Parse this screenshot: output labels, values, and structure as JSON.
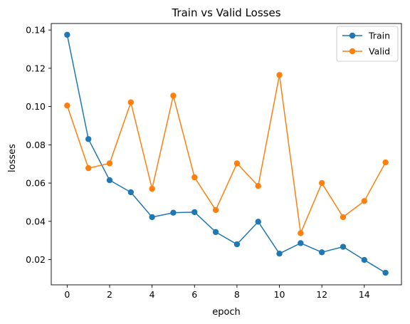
{
  "chart_data": {
    "type": "line",
    "title": "Train vs Valid Losses",
    "xlabel": "epoch",
    "ylabel": "losses",
    "x": [
      0,
      1,
      2,
      3,
      4,
      5,
      6,
      7,
      8,
      9,
      10,
      11,
      12,
      13,
      14,
      15
    ],
    "xlim": [
      -0.75,
      15.75
    ],
    "ylim": [
      0.0068,
      0.1434
    ],
    "xticks": [
      0,
      2,
      4,
      6,
      8,
      10,
      12,
      14
    ],
    "xtick_labels": [
      "0",
      "2",
      "4",
      "6",
      "8",
      "10",
      "12",
      "14"
    ],
    "yticks": [
      0.02,
      0.04,
      0.06,
      0.08,
      0.1,
      0.12,
      0.14
    ],
    "ytick_labels": [
      "0.02",
      "0.04",
      "0.06",
      "0.08",
      "0.10",
      "0.12",
      "0.14"
    ],
    "grid": false,
    "legend_position": "top-right",
    "series": [
      {
        "name": "Train",
        "color": "#1f77b4",
        "marker": "circle",
        "values": [
          0.1375,
          0.083,
          0.0615,
          0.0552,
          0.0422,
          0.0445,
          0.0448,
          0.0344,
          0.028,
          0.0398,
          0.0231,
          0.0286,
          0.0238,
          0.0267,
          0.0198,
          0.0131
        ]
      },
      {
        "name": "Valid",
        "color": "#ff7f0e",
        "marker": "circle",
        "values": [
          0.1005,
          0.0678,
          0.0703,
          0.1022,
          0.057,
          0.1057,
          0.063,
          0.0459,
          0.0703,
          0.0585,
          0.1165,
          0.0338,
          0.06,
          0.0422,
          0.0506,
          0.0708
        ]
      }
    ]
  }
}
